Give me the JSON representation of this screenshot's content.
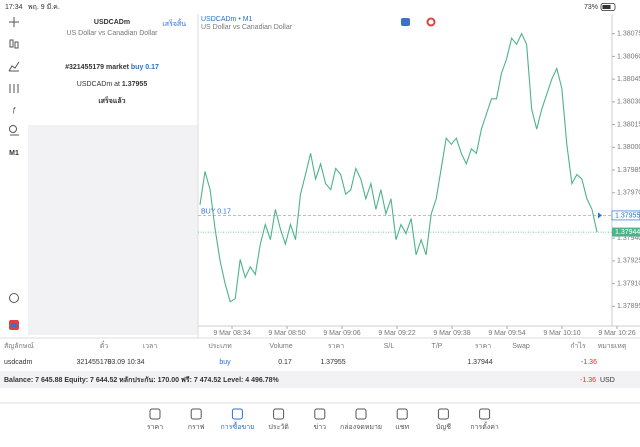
{
  "status_bar": {
    "time": "17:34",
    "date": "พฤ. 9 มี.ค.",
    "battery": "73%"
  },
  "toolbar": {
    "timeframe": "M1"
  },
  "order_panel": {
    "symbol": "USDCADm",
    "description": "US Dollar vs Canadian Dollar",
    "done_button": "เสร็จสิ้น",
    "order_text": "#321455179 market",
    "order_action": "buy 0.17",
    "price_text": "USDCADm at",
    "price": "1.37955",
    "status": "เสร็จแล้ว"
  },
  "chart": {
    "type": "line",
    "title": "USDCADm • M1",
    "subtitle": "US Dollar vs Canadian Dollar",
    "color": "#4db38a",
    "values": [
      1.37962,
      1.37984,
      1.37972,
      1.37946,
      1.37925,
      1.3791,
      1.37898,
      1.379,
      1.37926,
      1.37914,
      1.37921,
      1.37916,
      1.37936,
      1.37949,
      1.37939,
      1.37959,
      1.37946,
      1.37936,
      1.37949,
      1.37939,
      1.37969,
      1.37982,
      1.37996,
      1.37979,
      1.37989,
      1.37976,
      1.37972,
      1.37986,
      1.37982,
      1.37969,
      1.37972,
      1.37986,
      1.37979,
      1.37966,
      1.37976,
      1.37959,
      1.37972,
      1.37956,
      1.37966,
      1.37939,
      1.37949,
      1.37943,
      1.37953,
      1.37929,
      1.37939,
      1.37929,
      1.37956,
      1.37966,
      1.37986,
      1.38006,
      1.38002,
      1.38006,
      1.37996,
      1.37989,
      1.37999,
      1.37996,
      1.38012,
      1.38022,
      1.38032,
      1.38032,
      1.38049,
      1.38058,
      1.38072,
      1.38068,
      1.38075,
      1.38068,
      1.38025,
      1.38012,
      1.38025,
      1.38035,
      1.38045,
      1.38052,
      1.38039,
      1.38002,
      1.37976,
      1.37982,
      1.37979,
      1.37966,
      1.37959,
      1.37944
    ],
    "ylim": [
      1.37882,
      1.38088
    ],
    "yticks": [
      1.38075,
      {
        "value": 1.3806,
        "label": "1.38060"
      },
      1.38045,
      {
        "value": 1.3803,
        "label": "1.38030"
      },
      1.38015,
      {
        "value": 1.38,
        "label": "1.38000"
      },
      1.37985,
      {
        "value": 1.3797,
        "label": "1.37970"
      },
      {
        "value": 1.3794,
        "label": "1.37940"
      },
      1.37925,
      {
        "value": 1.3791,
        "label": "1.37910"
      },
      1.37895
    ],
    "xticks": [
      "9 Mar 08:34",
      "9 Mar 08:50",
      "9 Mar 09:06",
      "9 Mar 09:22",
      "9 Mar 09:38",
      "9 Mar 09:54",
      "9 Mar 10:10",
      "9 Mar 10:26"
    ],
    "buy_line": {
      "label": "BUY 0.17",
      "value": 1.37955
    },
    "current_price": 1.37944
  },
  "table": {
    "headers": [
      "สัญลักษณ์",
      "ตั๋ว",
      "เวลา",
      "ประเภท",
      "Volume",
      "ราคา",
      "S/L",
      "T/P",
      "ราคา",
      "Swap",
      "กำไร",
      "หมายเหตุ"
    ],
    "row": {
      "symbol": "usdcadm",
      "ticket": "321455179",
      "time": "03.09 10:34",
      "type": "buy",
      "volume": "0.17",
      "price": "1.37955",
      "price_current": "1.37944",
      "profit": "-1.36"
    },
    "balance": "Balance: 7 645.88 Equity: 7 644.52 หลักประกัน: 170.00 ฟรี: 7 474.52 Level: 4 496.78%",
    "total_profit": "-1.36",
    "currency": "USD"
  },
  "tabs": [
    "ราคา",
    "กราฟ",
    "การซื้อขาย",
    "ประวัติ",
    "ข่าว",
    "กล่องจดหมาย",
    "แชท",
    "บัญชี",
    "การตั้งค่า"
  ]
}
